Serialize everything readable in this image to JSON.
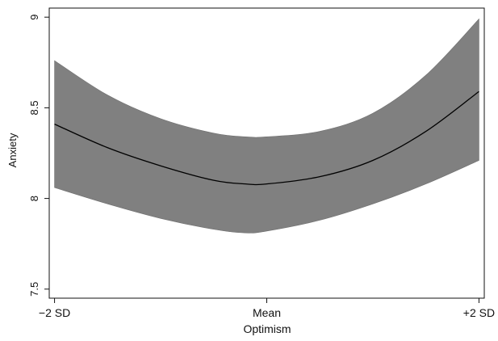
{
  "chart_data": {
    "type": "area",
    "title": "",
    "xlabel": "Optimism",
    "ylabel": "Anxiety",
    "x_ticks": [
      {
        "label": "−2 SD",
        "value": -2
      },
      {
        "label": "Mean",
        "value": 0
      },
      {
        "label": "+2 SD",
        "value": 2
      }
    ],
    "y_ticks": [
      {
        "label": "7.5",
        "value": 7.5
      },
      {
        "label": "8",
        "value": 8
      },
      {
        "label": "8.5",
        "value": 8.5
      },
      {
        "label": "9",
        "value": 9
      }
    ],
    "xlim": [
      -2.05,
      2.05
    ],
    "ylim": [
      7.45,
      9.05
    ],
    "grid": false,
    "legend": "none",
    "series": [
      {
        "kind": "line",
        "x": [
          -2,
          -1.5,
          -1,
          -0.5,
          -0.2,
          0,
          0.5,
          1,
          1.5,
          2
        ],
        "y": [
          8.41,
          8.28,
          8.18,
          8.1,
          8.08,
          8.08,
          8.12,
          8.21,
          8.37,
          8.59
        ]
      },
      {
        "kind": "band",
        "x": [
          -2,
          -1.5,
          -1,
          -0.5,
          -0.2,
          0,
          0.5,
          1,
          1.5,
          2
        ],
        "lower": [
          8.06,
          7.97,
          7.89,
          7.83,
          7.81,
          7.82,
          7.88,
          7.97,
          8.08,
          8.21
        ],
        "upper": [
          8.76,
          8.57,
          8.44,
          8.36,
          8.34,
          8.34,
          8.37,
          8.47,
          8.68,
          8.99
        ]
      }
    ],
    "colors": {
      "band_fill": "#808080",
      "line": "#000000",
      "axis": "#111111"
    }
  }
}
